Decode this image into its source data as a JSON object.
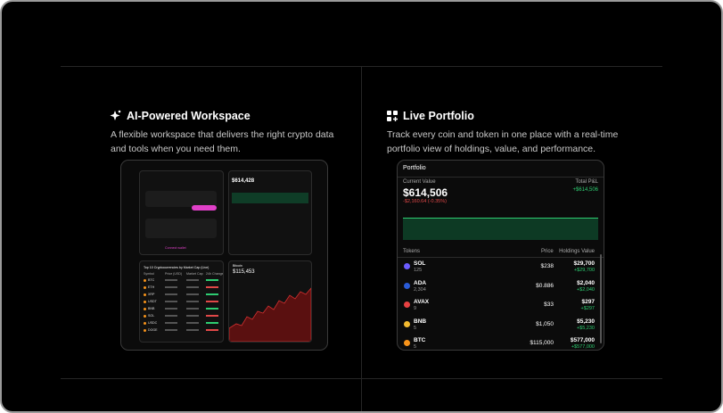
{
  "left": {
    "title": "AI-Powered Workspace",
    "description_lines": [
      "A flexible workspace that delivers the right crypto data",
      "and tools when you need them."
    ],
    "mockup": {
      "balance": "$614,428",
      "table_title": "Top 10 Cryptocurrencies by Market Cap (Live)",
      "table_headers": [
        "Symbol",
        "Price (USD)",
        "Market Cap",
        "24h Change"
      ],
      "symbols": [
        "BTC",
        "ETH",
        "XRP",
        "USDT",
        "BNB",
        "SOL",
        "USDC",
        "DOGE"
      ],
      "chart_title": "Bitcoin",
      "chart_value": "$115,453",
      "connect": "Connect wallet"
    }
  },
  "right": {
    "title": "Live Portfolio",
    "description_lines": [
      "Track every coin and token in one place with a real-time",
      "portfolio view of holdings, value, and performance."
    ],
    "card": {
      "title": "Portfolio",
      "current_label": "Current Value",
      "current_value": "$614,506",
      "change": "-$2,160.64 (-0.35%)",
      "pnl_label": "Total P&L",
      "pnl_value": "+$614,506",
      "headers": [
        "Tokens",
        "Price",
        "Holdings Value"
      ],
      "rows": [
        {
          "symbol": "SOL",
          "amount": "125",
          "price": "$238",
          "value": "$29,700",
          "gain": "+$29,700",
          "color": "#6b5cff"
        },
        {
          "symbol": "ADA",
          "amount": "2,304",
          "price": "$0.886",
          "value": "$2,040",
          "gain": "+$2,040",
          "color": "#2a5bd7"
        },
        {
          "symbol": "AVAX",
          "amount": "9",
          "price": "$33",
          "value": "$297",
          "gain": "+$297",
          "color": "#e84142"
        },
        {
          "symbol": "BNB",
          "amount": "5",
          "price": "$1,050",
          "value": "$5,230",
          "gain": "+$5,230",
          "color": "#f3ba2f"
        },
        {
          "symbol": "BTC",
          "amount": "5",
          "price": "$115,000",
          "value": "$577,000",
          "gain": "+$577,000",
          "color": "#f7931a"
        }
      ]
    }
  }
}
